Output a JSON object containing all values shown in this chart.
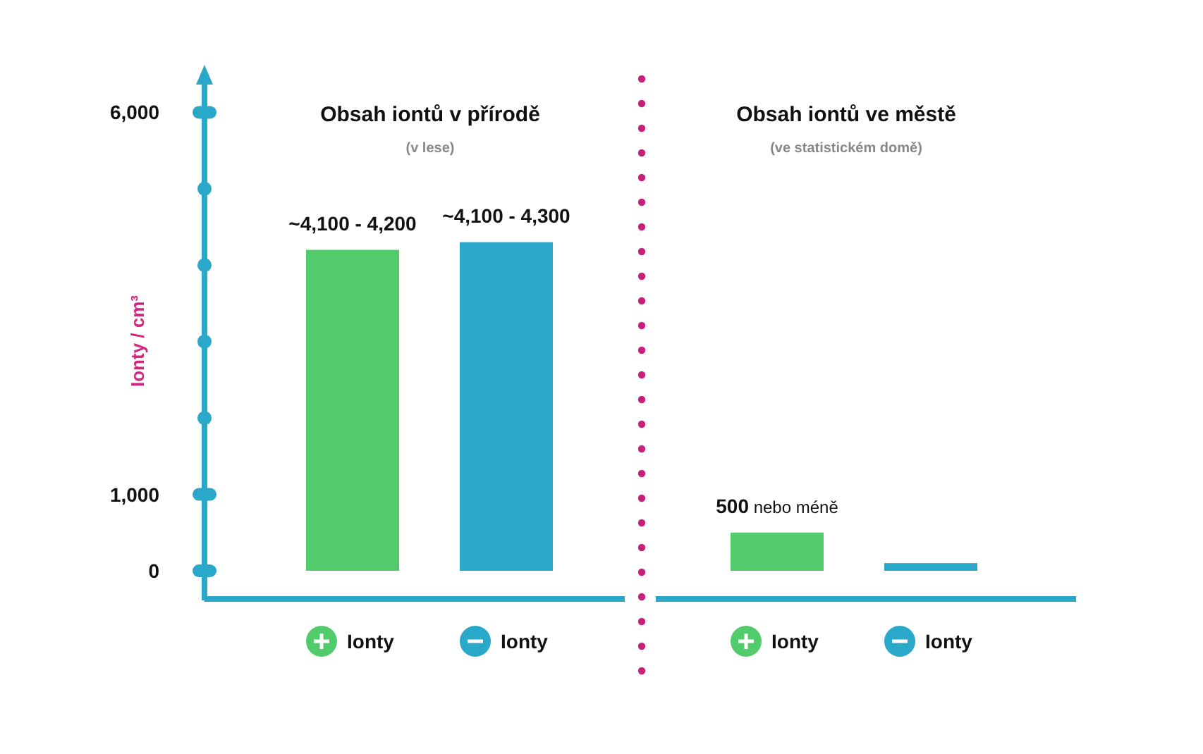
{
  "chart_data": [
    {
      "type": "bar",
      "title": "Obsah iontů v přírodě",
      "subtitle": "(v lese)",
      "ylabel": "Ionty / cm³",
      "categories": [
        "Ionty",
        "Ionty"
      ],
      "values": [
        4200,
        4300
      ],
      "colors": [
        "#52cc6b",
        "#29a8c9"
      ],
      "value_labels": [
        "~4,100 - 4,200",
        "~4,100 - 4,300"
      ],
      "ylim": [
        0,
        6400
      ],
      "yticks": [
        0,
        {
          "value": 1000,
          "label": "1,000"
        },
        {
          "value": 6000,
          "label": "6,000"
        }
      ],
      "grid": false
    },
    {
      "type": "bar",
      "title": "Obsah iontů ve městě",
      "subtitle": "(ve statistickém domě)",
      "categories": [
        "Ionty",
        "Ionty"
      ],
      "values": [
        500,
        100
      ],
      "colors": [
        "#52cc6b",
        "#29a8c9"
      ],
      "value_labels": [
        "500 nebo méně",
        null
      ],
      "tick_labels": "x",
      "grid": false
    }
  ]
}
